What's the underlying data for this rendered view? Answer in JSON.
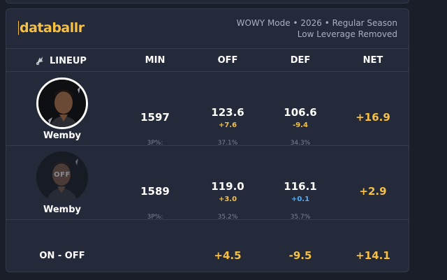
{
  "brand": "databallr",
  "meta": {
    "line1": "WOWY Mode • 2026 • Regular Season",
    "line2": "Low Leverage Removed"
  },
  "columns": {
    "lineup": "LINEUP",
    "min": "MIN",
    "off": "OFF",
    "def": "DEF",
    "net": "NET"
  },
  "rows": [
    {
      "player": "Wemby",
      "state": "on",
      "min": "1597",
      "off": "123.6",
      "off_diff": "+7.6",
      "def": "106.6",
      "def_diff": "-9.4",
      "net": "+16.9",
      "min_sub": "3P%:",
      "off_sub": "37.1%",
      "def_sub": "34.3%"
    },
    {
      "player": "Wemby",
      "state": "off",
      "off_label": "OFF",
      "min": "1589",
      "off": "119.0",
      "off_diff": "+3.0",
      "def": "116.1",
      "def_diff": "+0.1",
      "net": "+2.9",
      "min_sub": "3P%:",
      "off_sub": "35.2%",
      "def_sub": "35.7%"
    }
  ],
  "summary": {
    "label": "ON - OFF",
    "off": "+4.5",
    "def": "-9.5",
    "net": "+14.1"
  },
  "colors": {
    "accent": "#f5c043",
    "blue": "#4fb2ff",
    "card": "#242a3a",
    "background": "#1a1e28"
  },
  "icons": {
    "lineup": "spurs-logo-icon"
  }
}
